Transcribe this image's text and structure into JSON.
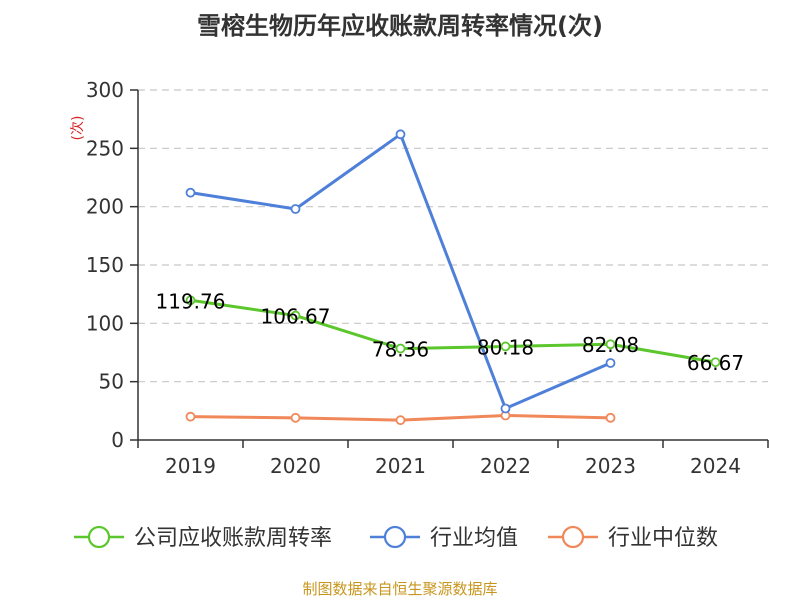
{
  "title": "雪榕生物历年应收账款周转率情况(次)",
  "source": "制图数据来自恒生聚源数据库",
  "colors": {
    "company": "#5cc72c",
    "industry_avg": "#4e80d9",
    "industry_median": "#f0885a",
    "source_text": "#c8961e",
    "ylabel": "#d62728",
    "grid": "#c8c8c8",
    "axis": "#333333"
  },
  "chart_data": {
    "type": "line",
    "title": "雪榕生物历年应收账款周转率情况(次)",
    "ylabel": "(次)",
    "xlabel": "",
    "categories": [
      "2019",
      "2020",
      "2021",
      "2022",
      "2023",
      "2024"
    ],
    "ylim": [
      0,
      300
    ],
    "yticks": [
      0,
      50,
      100,
      150,
      200,
      250,
      300
    ],
    "grid": true,
    "legend_position": "bottom",
    "series": [
      {
        "name": "公司应收账款周转率",
        "values": [
          119.76,
          106.67,
          78.36,
          80.18,
          82.08,
          66.67
        ],
        "labels": [
          "119.76",
          "106.67",
          "78.36",
          "80.18",
          "82.08",
          "66.67"
        ]
      },
      {
        "name": "行业均值",
        "values": [
          212,
          198,
          262,
          27,
          66,
          null
        ]
      },
      {
        "name": "行业中位数",
        "values": [
          20,
          19,
          17,
          21,
          19,
          null
        ]
      }
    ]
  }
}
